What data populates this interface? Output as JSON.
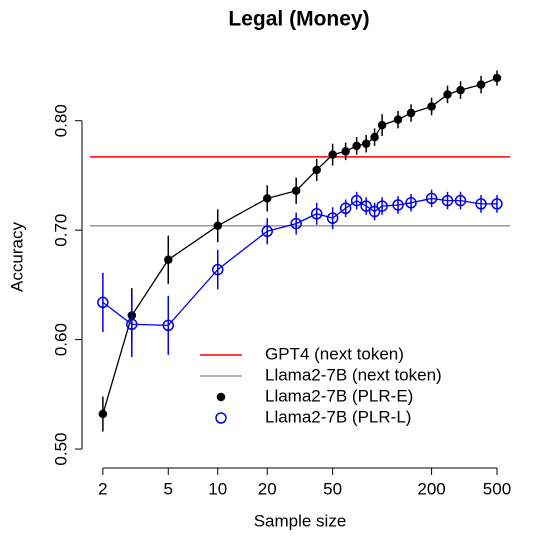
{
  "chart_data": {
    "type": "line",
    "title": "Legal (Money)",
    "x_label": "Sample size",
    "y_label": "Accuracy",
    "log_x": true,
    "xlim": [
      1.67,
      600
    ],
    "ylim": [
      0.49,
      0.85
    ],
    "xticks": [
      2,
      5,
      10,
      20,
      50,
      200,
      500
    ],
    "yticks": [
      {
        "value": 0.5,
        "label": "0.50"
      },
      {
        "value": 0.6,
        "label": "0.60"
      },
      {
        "value": 0.7,
        "label": "0.70"
      },
      {
        "value": 0.8,
        "label": "0.80"
      }
    ],
    "reference_lines": [
      {
        "name": "GPT4 (next token)",
        "color": "#ff0000",
        "value": 0.767
      },
      {
        "name": "Llama2-7B (next token)",
        "color": "#999999",
        "value": 0.704
      }
    ],
    "series": [
      {
        "name": "Llama2-7B (PLR-E)",
        "color": "#000000",
        "marker": "filled",
        "x": [
          2,
          3,
          5,
          10,
          20,
          30,
          40,
          50,
          60,
          70,
          80,
          90,
          100,
          125,
          150,
          200,
          250,
          300,
          400,
          500
        ],
        "values": [
          0.532,
          0.622,
          0.673,
          0.704,
          0.729,
          0.736,
          0.755,
          0.769,
          0.772,
          0.777,
          0.779,
          0.785,
          0.796,
          0.801,
          0.807,
          0.813,
          0.824,
          0.828,
          0.833,
          0.839
        ],
        "errors": [
          0.016,
          0.025,
          0.022,
          0.015,
          0.012,
          0.012,
          0.01,
          0.01,
          0.008,
          0.008,
          0.008,
          0.008,
          0.01,
          0.008,
          0.008,
          0.008,
          0.008,
          0.008,
          0.008,
          0.007
        ]
      },
      {
        "name": "Llama2-7B (PLR-L)",
        "color": "#0000ee",
        "marker": "open",
        "x": [
          2,
          3,
          5,
          10,
          20,
          30,
          40,
          50,
          60,
          70,
          80,
          90,
          100,
          125,
          150,
          200,
          250,
          300,
          400,
          500
        ],
        "values": [
          0.634,
          0.614,
          0.613,
          0.664,
          0.699,
          0.706,
          0.715,
          0.711,
          0.72,
          0.727,
          0.722,
          0.717,
          0.722,
          0.723,
          0.725,
          0.729,
          0.727,
          0.727,
          0.724,
          0.724
        ],
        "errors": [
          0.027,
          0.03,
          0.027,
          0.018,
          0.012,
          0.01,
          0.01,
          0.01,
          0.008,
          0.008,
          0.008,
          0.008,
          0.008,
          0.008,
          0.008,
          0.008,
          0.008,
          0.008,
          0.008,
          0.008
        ]
      }
    ]
  }
}
